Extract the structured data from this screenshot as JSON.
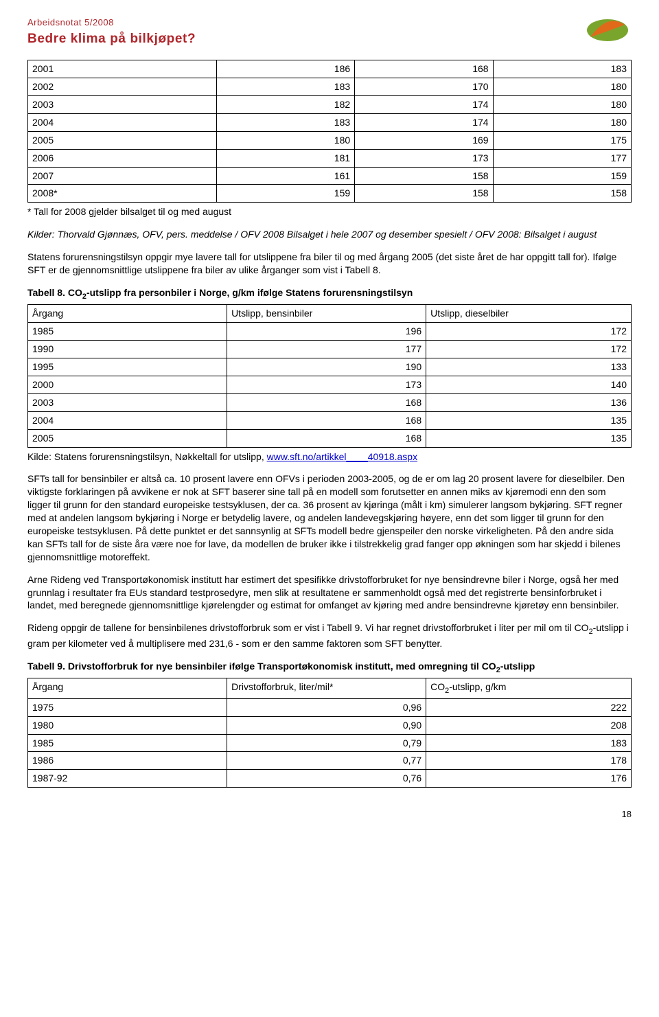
{
  "header": {
    "line1": "Arbeidsnotat 5/2008",
    "line2": "Bedre klima på bilkjøpet?"
  },
  "table7": {
    "rows": [
      [
        "2001",
        "186",
        "168",
        "183"
      ],
      [
        "2002",
        "183",
        "170",
        "180"
      ],
      [
        "2003",
        "182",
        "174",
        "180"
      ],
      [
        "2004",
        "183",
        "174",
        "180"
      ],
      [
        "2005",
        "180",
        "169",
        "175"
      ],
      [
        "2006",
        "181",
        "173",
        "177"
      ],
      [
        "2007",
        "161",
        "158",
        "159"
      ],
      [
        "2008*",
        "159",
        "158",
        "158"
      ]
    ],
    "footnote": "* Tall for 2008 gjelder bilsalget til og med august",
    "source": "Kilder: Thorvald Gjønnæs, OFV, pers. meddelse / OFV 2008 Bilsalget i hele 2007 og desember spesielt / OFV 2008: Bilsalget i august"
  },
  "para1": "Statens forurensningstilsyn oppgir mye lavere tall for utslippene fra biler til og med årgang 2005 (det siste året de har oppgitt tall for). Ifølge SFT er de gjennomsnittlige utslippene fra biler av ulike årganger som vist i Tabell 8.",
  "table8": {
    "title_prefix": "Tabell 8. CO",
    "title_suffix": "-utslipp fra personbiler i Norge, g/km ifølge Statens forurensningstilsyn",
    "headers": [
      "Årgang",
      "Utslipp, bensinbiler",
      "Utslipp, dieselbiler"
    ],
    "rows": [
      [
        "1985",
        "196",
        "172"
      ],
      [
        "1990",
        "177",
        "172"
      ],
      [
        "1995",
        "190",
        "133"
      ],
      [
        "2000",
        "173",
        "140"
      ],
      [
        "2003",
        "168",
        "136"
      ],
      [
        "2004",
        "168",
        "135"
      ],
      [
        "2005",
        "168",
        "135"
      ]
    ],
    "source_prefix": "Kilde: Statens forurensningstilsyn, Nøkkeltall for utslipp, ",
    "source_link": "www.sft.no/artikkel____40918.aspx"
  },
  "para2": "SFTs tall for bensinbiler er altså ca. 10 prosent lavere enn OFVs i perioden 2003-2005, og de er om lag 20 prosent lavere for dieselbiler. Den viktigste forklaringen på avvikene er nok at SFT baserer sine tall på en modell som forutsetter en annen miks av kjøremodi enn den som ligger til grunn for den standard europeiske testsyklusen, der ca. 36 prosent av kjøringa (målt i km) simulerer langsom bykjøring. SFT regner med at andelen langsom bykjøring i Norge er betydelig lavere, og andelen landevegskjøring høyere, enn det som ligger til grunn for den europeiske testsyklusen. På dette punktet er det sannsynlig at SFTs modell bedre gjenspeiler den norske virkeligheten. På den andre sida kan SFTs tall for de siste åra være noe for lave, da modellen de bruker ikke i tilstrekkelig grad fanger opp økningen som har skjedd i bilenes gjennomsnittlige motoreffekt.",
  "para3": "Arne Rideng ved Transportøkonomisk institutt har estimert det spesifikke drivstofforbruket for nye bensindrevne biler i Norge, også her med grunnlag i resultater fra EUs standard testprosedyre, men slik at resultatene er sammenholdt også med det registrerte bensinforbruket i landet, med beregnede gjennomsnittlige kjørelengder og estimat for omfanget av kjøring med andre bensindrevne kjøretøy enn bensinbiler.",
  "para4_prefix": "Rideng oppgir de tallene for bensinbilenes drivstofforbruk som er vist i Tabell 9. Vi har regnet drivstofforbruket i liter per mil om til CO",
  "para4_suffix": "-utslipp i gram per kilometer ved å multiplisere med 231,6 - som er den samme faktoren som SFT benytter.",
  "table9": {
    "title_prefix": "Tabell 9. Drivstofforbruk for nye bensinbiler ifølge Transportøkonomisk institutt, med omregning til CO",
    "title_suffix": "-utslipp",
    "headers_prefix": [
      "Årgang",
      "Drivstofforbruk, liter/mil*"
    ],
    "headers_co2": "-utslipp, g/km",
    "rows": [
      [
        "1975",
        "0,96",
        "222"
      ],
      [
        "1980",
        "0,90",
        "208"
      ],
      [
        "1985",
        "0,79",
        "183"
      ],
      [
        "1986",
        "0,77",
        "178"
      ],
      [
        "1987-92",
        "0,76",
        "176"
      ]
    ]
  },
  "page_number": "18",
  "colors": {
    "brand_red": "#b0252a",
    "logo_green": "#7aa52d",
    "logo_orange": "#e06a1a",
    "link": "#0000cc"
  }
}
